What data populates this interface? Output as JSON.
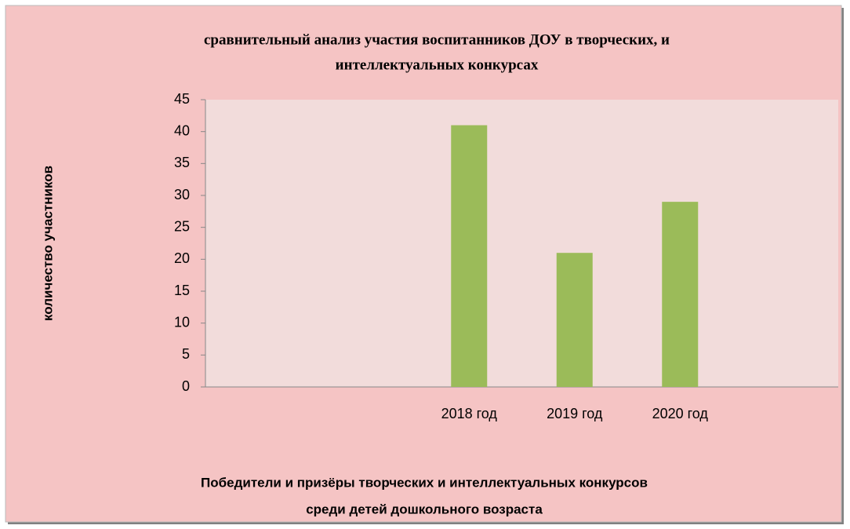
{
  "chart_data": {
    "type": "bar",
    "title": [
      "сравнительный анализ участия воспитанников ДОУ в творческих, и",
      "интеллектуальных конкурсах"
    ],
    "y_label": "количество участников",
    "x_label": [
      "Победители и призёры творческих и  интеллектуальных конкурсов",
      "среди детей дошкольного возраста"
    ],
    "categories": [
      null,
      null,
      "2018 год",
      "2019 год",
      "2020 год",
      null
    ],
    "values": [
      null,
      null,
      41,
      21,
      29,
      null
    ],
    "color": "#9bbb59",
    "ylim": [
      0,
      45
    ],
    "yticks": [
      0,
      5,
      10,
      15,
      20,
      25,
      30,
      35,
      40,
      45
    ],
    "grid": false
  }
}
